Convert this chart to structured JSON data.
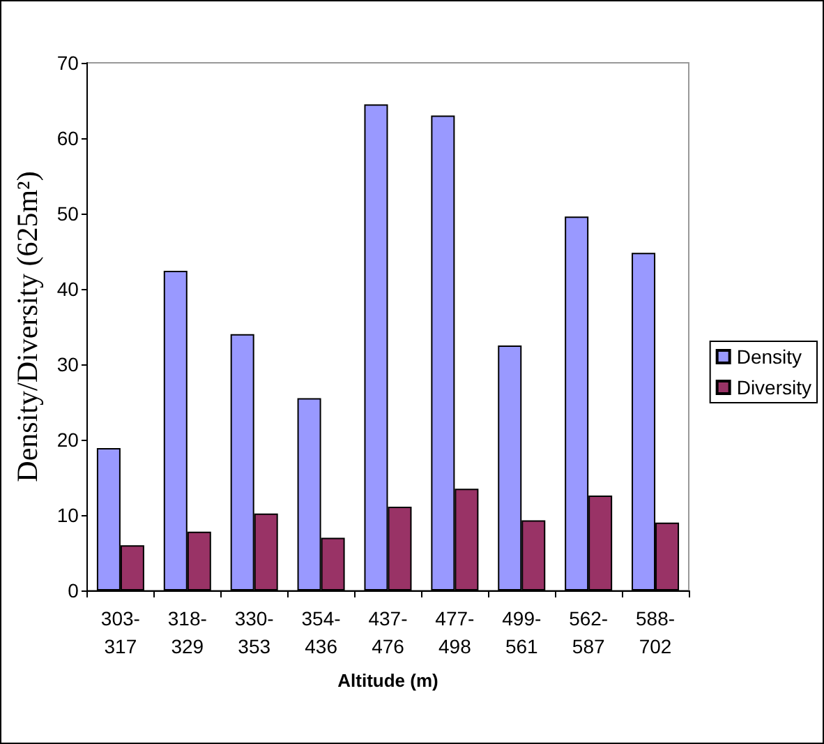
{
  "chart_data": {
    "type": "bar",
    "xlabel": "Altitude (m)",
    "ylabel": "Density/Diversity (625m²)",
    "categories": [
      "303-317",
      "318-329",
      "330-353",
      "354-436",
      "437-476",
      "477-498",
      "499-561",
      "562-587",
      "588-702"
    ],
    "series": [
      {
        "name": "Density",
        "color": "#9999ff",
        "values": [
          18.9,
          42.4,
          34,
          25.5,
          64.5,
          63,
          32.5,
          49.6,
          44.8
        ]
      },
      {
        "name": "Diversity",
        "color": "#993366",
        "values": [
          6,
          7.8,
          10.2,
          7,
          11.1,
          13.5,
          9.3,
          12.6,
          9
        ]
      }
    ],
    "ylim": [
      0,
      70
    ],
    "yticks": [
      0,
      10,
      20,
      30,
      40,
      50,
      60,
      70
    ],
    "grid": false,
    "legend": "right"
  }
}
